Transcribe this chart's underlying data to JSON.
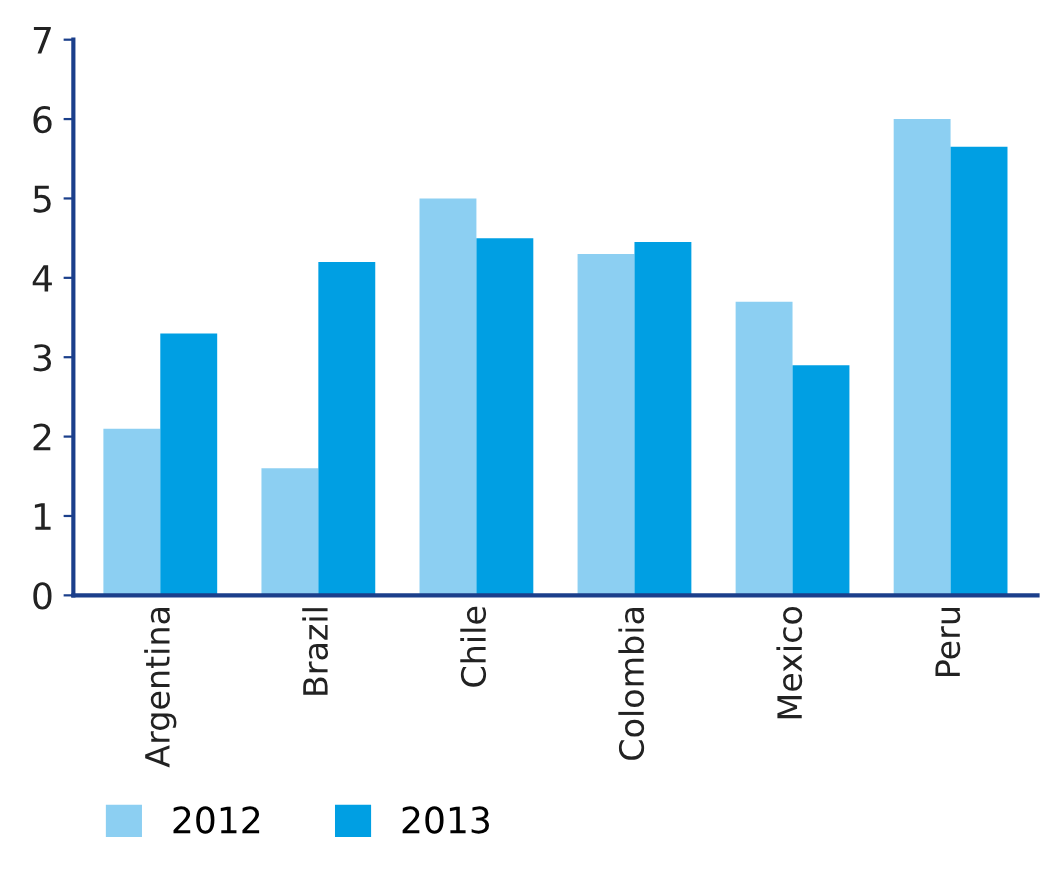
{
  "chart_data": {
    "type": "bar",
    "categories": [
      "Argentina",
      "Brazil",
      "Chile",
      "Colombia",
      "Mexico",
      "Peru"
    ],
    "series": [
      {
        "name": "2012",
        "color": "#8ccff2",
        "values": [
          2.1,
          1.6,
          5.0,
          4.3,
          3.7,
          6.0
        ]
      },
      {
        "name": "2013",
        "color": "#009fe3",
        "values": [
          3.3,
          4.2,
          4.5,
          4.45,
          2.9,
          5.65
        ]
      }
    ],
    "ylim": [
      0,
      7
    ],
    "yticks": [
      0,
      1,
      2,
      3,
      4,
      5,
      6,
      7
    ],
    "grid": false,
    "legend": "bottom left"
  }
}
